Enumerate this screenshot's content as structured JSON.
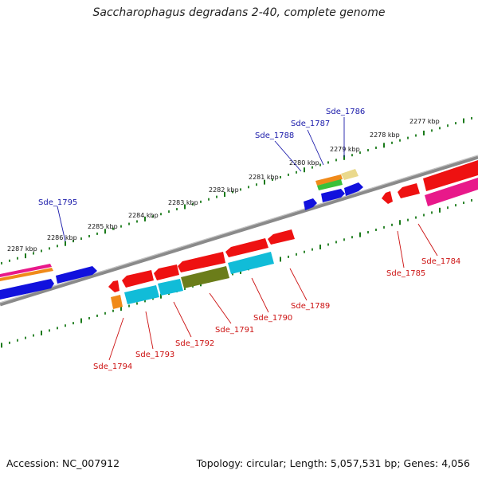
{
  "title": "Saccharophagus degradans 2-40, complete genome",
  "footer": {
    "accession": "Accession: NC_007912",
    "summary": "Topology: circular; Length: 5,057,531 bp; Genes: 4,056"
  },
  "scale_labels": [
    "2277 kbp",
    "2278 kbp",
    "2279 kbp",
    "2280 kbp",
    "2281 kbp",
    "2282 kbp",
    "2283 kbp",
    "2284 kbp",
    "2285 kbp",
    "2286 kbp",
    "2287 kbp"
  ],
  "gene_labels_forward": [
    "Sde_1786",
    "Sde_1787",
    "Sde_1788",
    "Sde_1795"
  ],
  "gene_labels_reverse": [
    "Sde_1784",
    "Sde_1785",
    "Sde_1789",
    "Sde_1790",
    "Sde_1791",
    "Sde_1792",
    "Sde_1793",
    "Sde_1794"
  ],
  "colors": {
    "backbone": "#8a8a8a",
    "tick": "#1a7a1a",
    "forward_label": "#1a1aaa",
    "reverse_label": "#cc1111",
    "red": "#ee1111",
    "blue": "#1111dd",
    "magenta": "#e8198a",
    "orange": "#f08a1a",
    "cyan": "#11bcd8",
    "olive": "#6b7d1a",
    "green": "#3ac03a",
    "khaki": "#ead98c"
  }
}
